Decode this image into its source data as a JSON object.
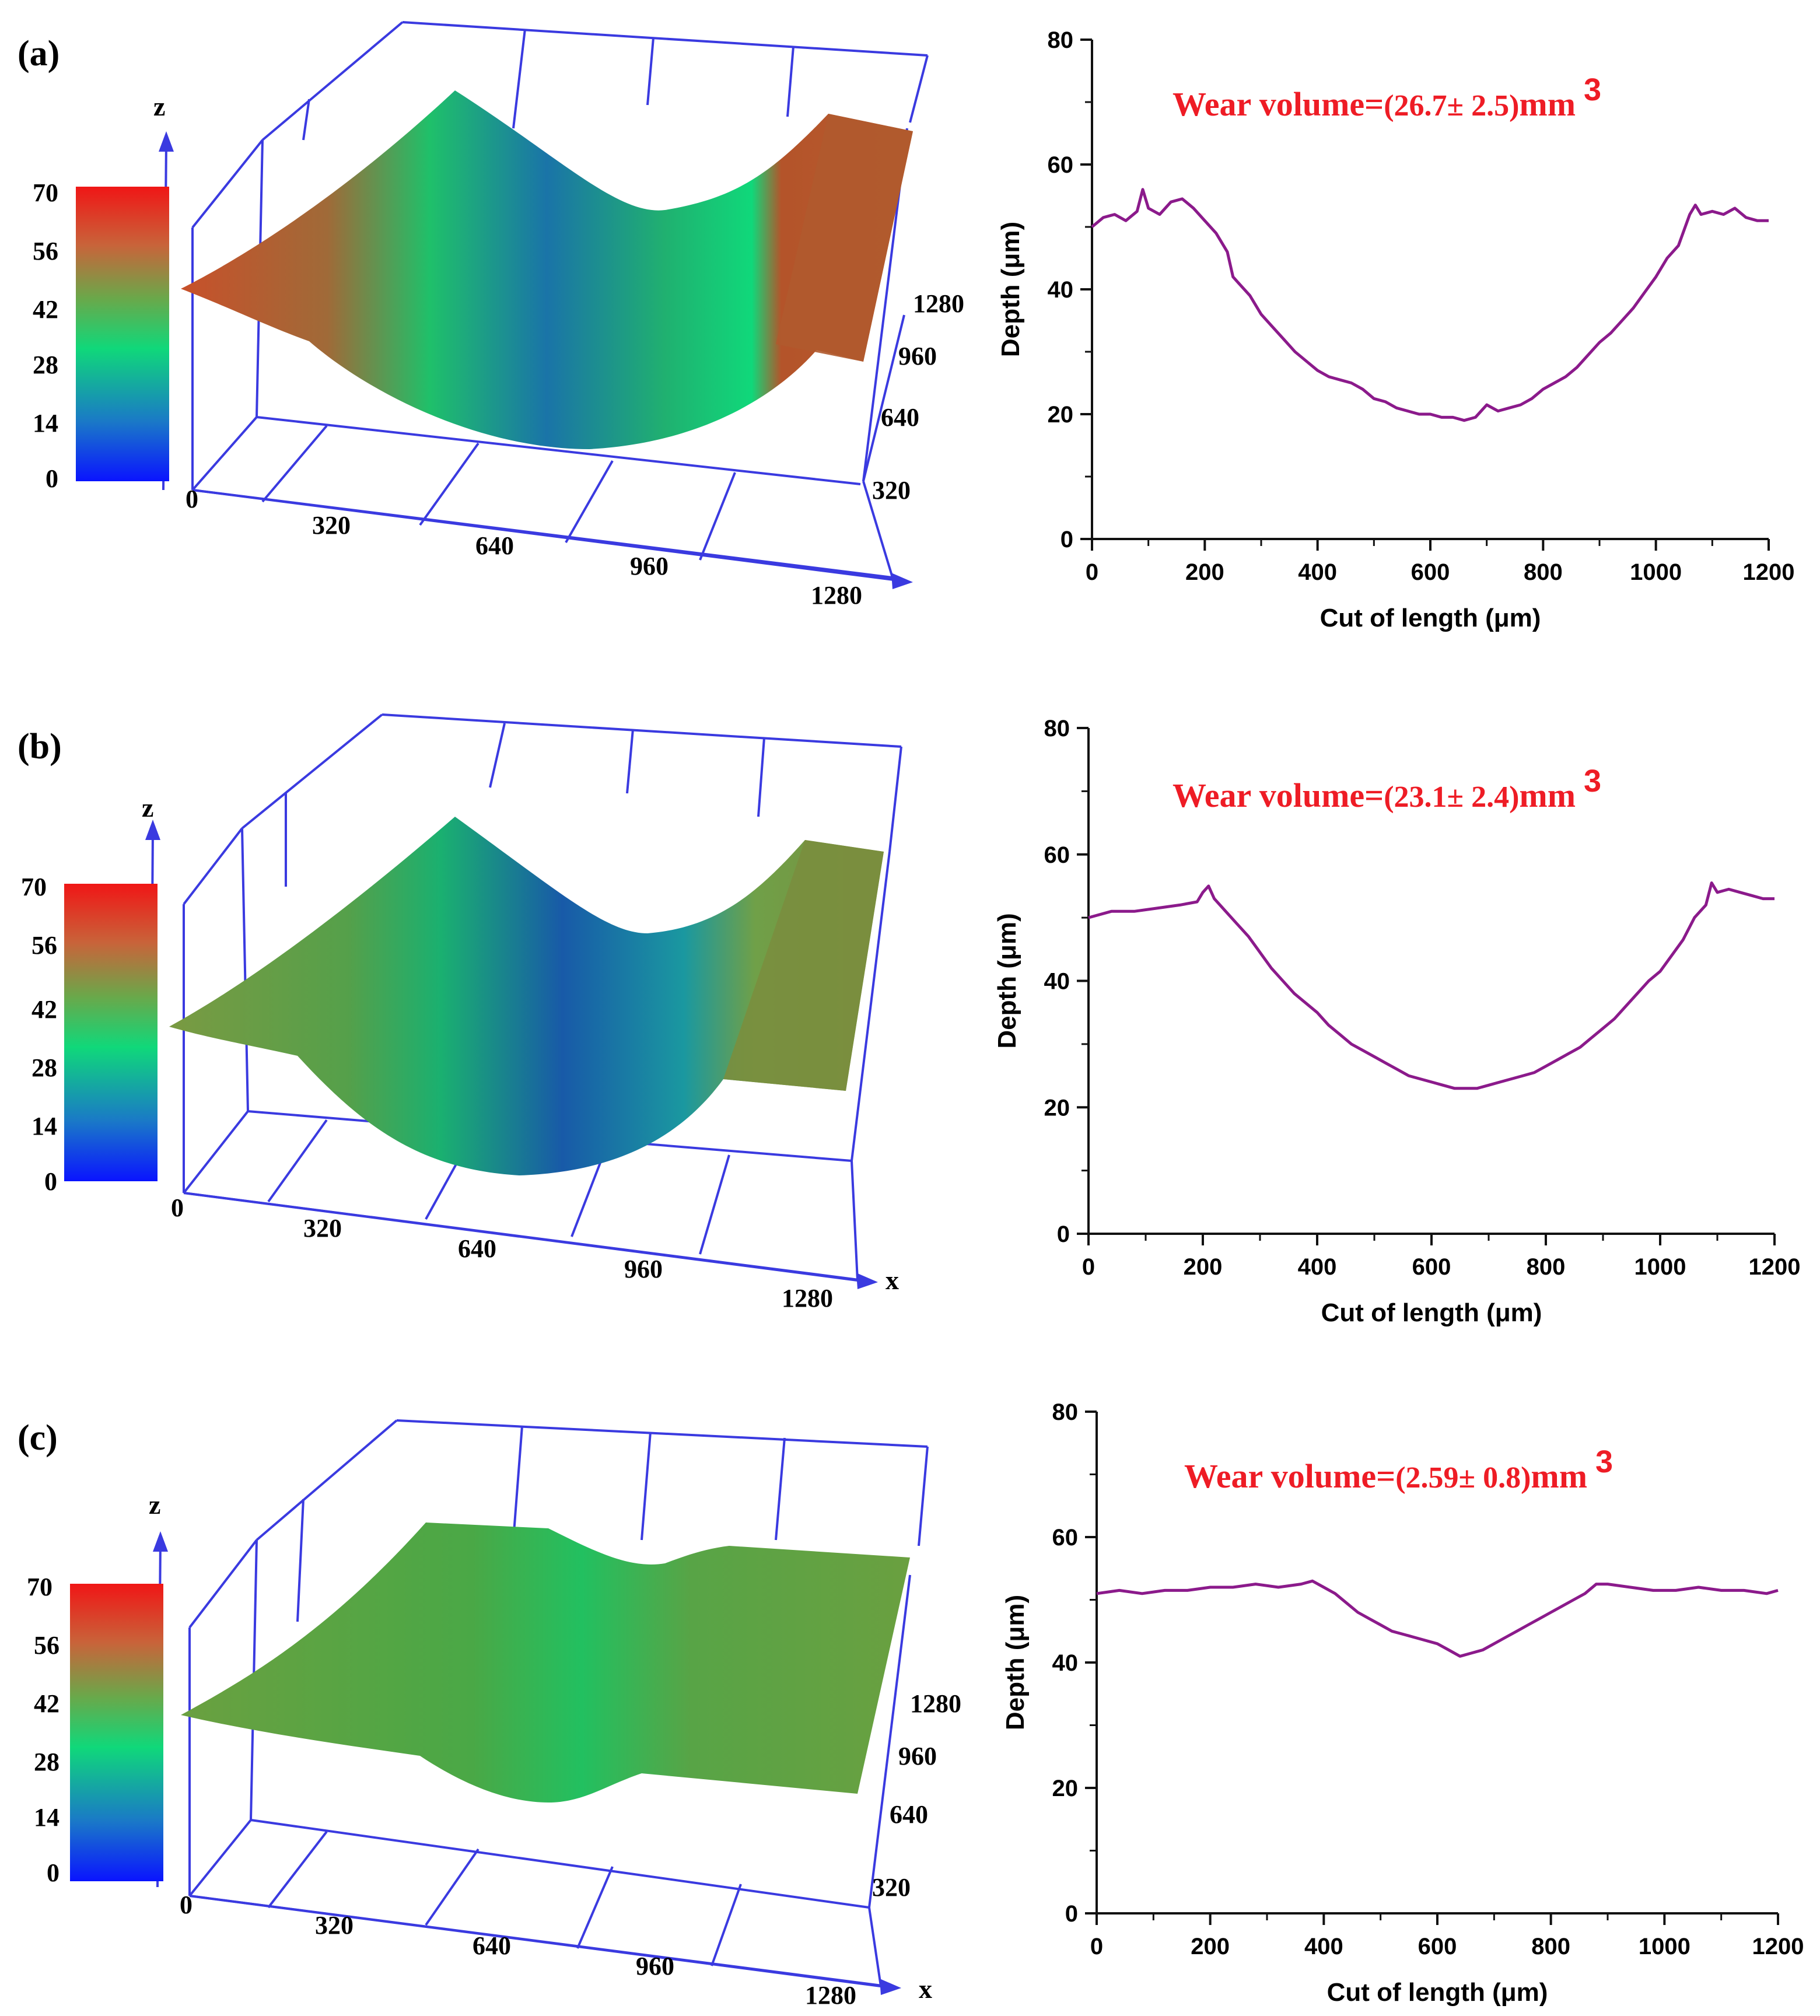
{
  "colors": {
    "profile_line": "#8b1a8b",
    "annotation": "#ee1c25",
    "axis_3d": "#3a3ae0",
    "axis_2d": "#111111",
    "colorbar": [
      "#0a14ff",
      "#1a78c8",
      "#10d87a",
      "#6aa84a",
      "#c8643a",
      "#f01616"
    ]
  },
  "colorbar": {
    "ticks": [
      "70",
      "56",
      "42",
      "28",
      "14",
      "0"
    ]
  },
  "panels": [
    {
      "id": "a",
      "label": "(a)",
      "surface": {
        "z_label": "z",
        "x_label": "",
        "origin_label": "0",
        "x_ticks": [
          "320",
          "640",
          "960",
          "1280"
        ],
        "y_ticks": [
          "1280",
          "960",
          "640",
          "320"
        ],
        "description": "worn surface with deep groove",
        "groove_center_depth_um": 20,
        "plateau_um": 50
      },
      "annotation": {
        "prefix": "Wear volume=",
        "value": "(26.7±  2.5)",
        "unit": "mm",
        "exponent": "3"
      }
    },
    {
      "id": "b",
      "label": "(b)",
      "surface": {
        "z_label": "z",
        "x_label": "x",
        "origin_label": "0",
        "x_ticks": [
          "320",
          "640",
          "960",
          "1280"
        ],
        "y_ticks": [],
        "groove_center_depth_um": 23,
        "plateau_um": 51
      },
      "annotation": {
        "prefix": "Wear volume=",
        "value": "(23.1±  2.4)",
        "unit": "mm",
        "exponent": "3"
      }
    },
    {
      "id": "c",
      "label": "(c)",
      "surface": {
        "z_label": "z",
        "x_label": "x",
        "origin_label": "0",
        "x_ticks": [
          "320",
          "640",
          "960",
          "1280"
        ],
        "y_ticks": [
          "1280",
          "960",
          "640",
          "320"
        ],
        "groove_center_depth_um": 41,
        "plateau_um": 51
      },
      "annotation": {
        "prefix": "Wear volume=",
        "value": "(2.59±  0.8)",
        "unit": "mm",
        "exponent": "3"
      }
    }
  ],
  "chart_data": [
    {
      "type": "line",
      "panel": "(a)",
      "title": "",
      "xlabel": "Cut of length (μm)",
      "ylabel": "Depth (μm)",
      "xlim": [
        0,
        1200
      ],
      "ylim": [
        0,
        80
      ],
      "xticks": [
        "0",
        "200",
        "400",
        "600",
        "800",
        "1000",
        "1200"
      ],
      "yticks": [
        "0",
        "20",
        "40",
        "60",
        "80"
      ],
      "series": [
        {
          "name": "profile",
          "x": [
            0,
            20,
            40,
            60,
            80,
            90,
            100,
            120,
            140,
            160,
            180,
            200,
            220,
            240,
            250,
            260,
            280,
            300,
            320,
            340,
            360,
            380,
            400,
            420,
            440,
            460,
            480,
            500,
            520,
            540,
            560,
            580,
            600,
            620,
            640,
            660,
            680,
            700,
            720,
            740,
            760,
            780,
            800,
            820,
            840,
            860,
            880,
            900,
            920,
            940,
            960,
            980,
            1000,
            1020,
            1040,
            1060,
            1070,
            1080,
            1100,
            1120,
            1140,
            1160,
            1180,
            1200
          ],
          "y": [
            50,
            51.5,
            52,
            51,
            52.5,
            56,
            53,
            52,
            54,
            54.5,
            53,
            51,
            49,
            46,
            42,
            41,
            39,
            36,
            34,
            32,
            30,
            28.5,
            27,
            26,
            25.5,
            25,
            24,
            22.5,
            22,
            21,
            20.5,
            20,
            20,
            19.5,
            19.5,
            19,
            19.5,
            21.5,
            20.5,
            21,
            21.5,
            22.5,
            24,
            25,
            26,
            27.5,
            29.5,
            31.5,
            33,
            35,
            37,
            39.5,
            42,
            45,
            47,
            52,
            53.5,
            52,
            52.5,
            52,
            53,
            51.5,
            51,
            51
          ]
        }
      ]
    },
    {
      "type": "line",
      "panel": "(b)",
      "title": "",
      "xlabel": "Cut of length (μm)",
      "ylabel": "Depth (μm)",
      "xlim": [
        0,
        1200
      ],
      "ylim": [
        0,
        80
      ],
      "xticks": [
        "0",
        "200",
        "400",
        "600",
        "800",
        "1000",
        "1200"
      ],
      "yticks": [
        "0",
        "20",
        "40",
        "60",
        "80"
      ],
      "series": [
        {
          "name": "profile",
          "x": [
            0,
            40,
            80,
            120,
            160,
            190,
            200,
            210,
            220,
            240,
            260,
            280,
            300,
            320,
            340,
            360,
            380,
            400,
            420,
            440,
            460,
            480,
            500,
            520,
            540,
            560,
            580,
            600,
            620,
            640,
            660,
            680,
            700,
            720,
            740,
            760,
            780,
            800,
            820,
            840,
            860,
            880,
            900,
            920,
            940,
            960,
            980,
            1000,
            1020,
            1040,
            1060,
            1080,
            1090,
            1100,
            1120,
            1140,
            1160,
            1180,
            1200
          ],
          "y": [
            50,
            51,
            51,
            51.5,
            52,
            52.5,
            54,
            55,
            53,
            51,
            49,
            47,
            44.5,
            42,
            40,
            38,
            36.5,
            35,
            33,
            31.5,
            30,
            29,
            28,
            27,
            26,
            25,
            24.5,
            24,
            23.5,
            23,
            23,
            23,
            23.5,
            24,
            24.5,
            25,
            25.5,
            26.5,
            27.5,
            28.5,
            29.5,
            31,
            32.5,
            34,
            36,
            38,
            40,
            41.5,
            44,
            46.5,
            50,
            52,
            55.5,
            54,
            54.5,
            54,
            53.5,
            53,
            53
          ]
        }
      ]
    },
    {
      "type": "line",
      "panel": "(c)",
      "title": "",
      "xlabel": "Cut of length (μm)",
      "ylabel": "Depth (μm)",
      "xlim": [
        0,
        1200
      ],
      "ylim": [
        0,
        80
      ],
      "xticks": [
        "0",
        "200",
        "400",
        "600",
        "800",
        "1000",
        "1200"
      ],
      "yticks": [
        "0",
        "20",
        "40",
        "60",
        "80"
      ],
      "series": [
        {
          "name": "profile",
          "x": [
            0,
            40,
            80,
            120,
            160,
            200,
            240,
            280,
            320,
            360,
            380,
            400,
            420,
            440,
            460,
            480,
            500,
            520,
            540,
            560,
            580,
            600,
            620,
            640,
            660,
            680,
            700,
            720,
            740,
            760,
            780,
            800,
            820,
            840,
            860,
            880,
            900,
            940,
            980,
            1020,
            1060,
            1100,
            1140,
            1180,
            1200
          ],
          "y": [
            51,
            51.5,
            51,
            51.5,
            51.5,
            52,
            52,
            52.5,
            52,
            52.5,
            53,
            52,
            51,
            49.5,
            48,
            47,
            46,
            45,
            44.5,
            44,
            43.5,
            43,
            42,
            41,
            41.5,
            42,
            43,
            44,
            45,
            46,
            47,
            48,
            49,
            50,
            51,
            52.5,
            52.5,
            52,
            51.5,
            51.5,
            52,
            51.5,
            51.5,
            51,
            51.5
          ]
        }
      ]
    }
  ]
}
